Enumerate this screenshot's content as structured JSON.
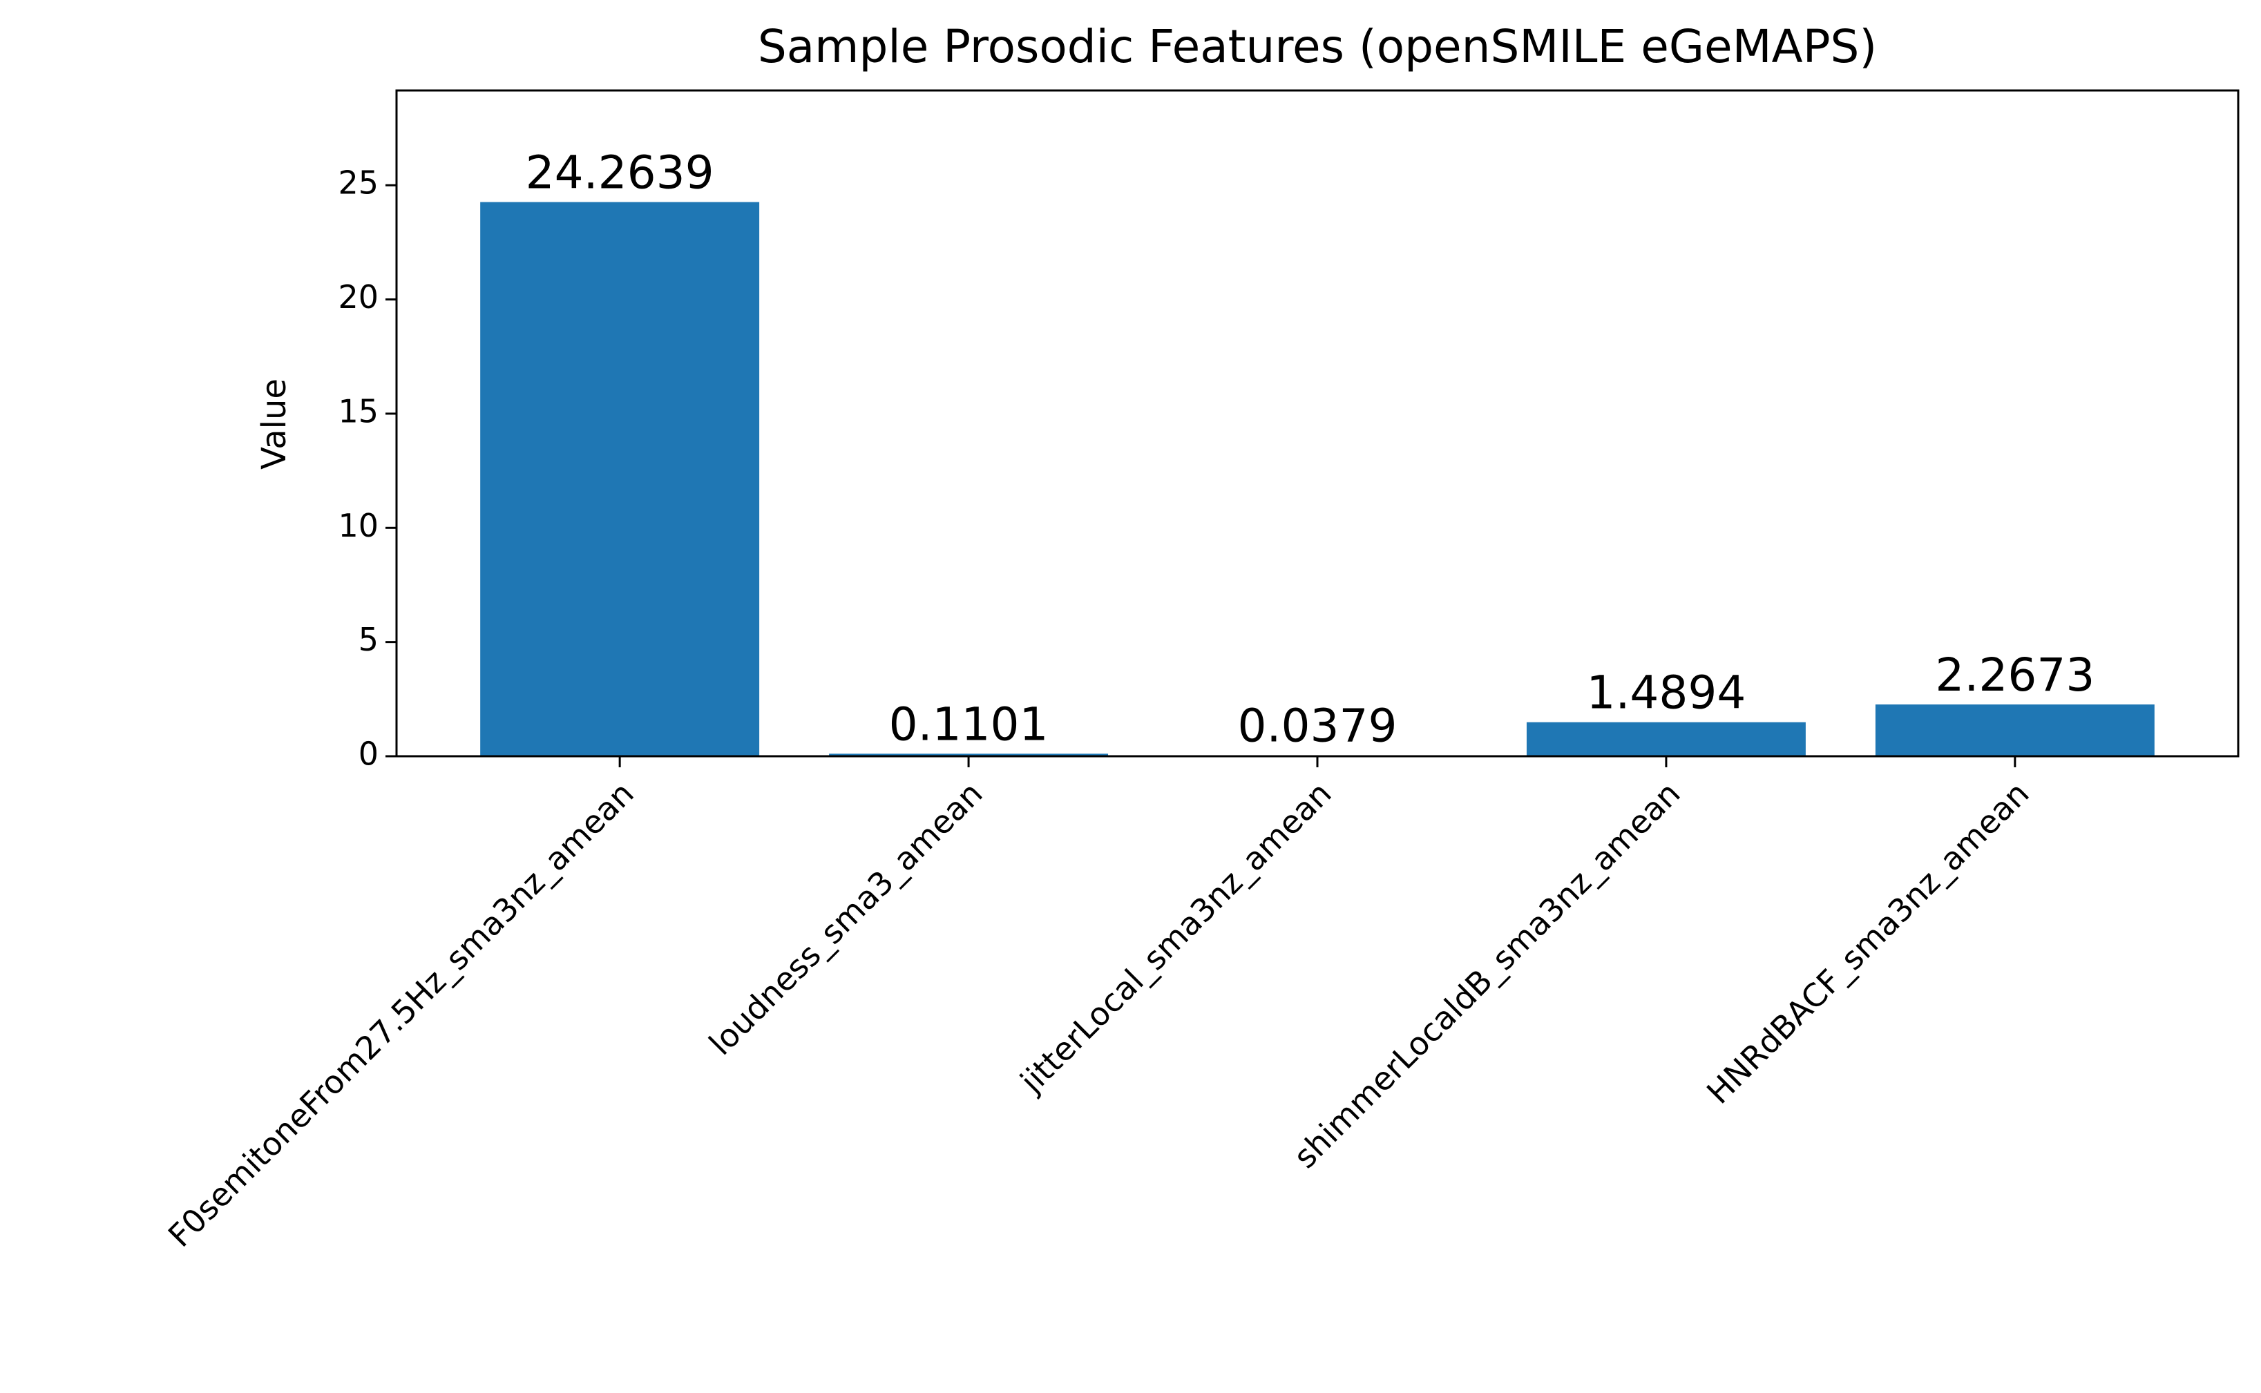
{
  "chart_data": {
    "type": "bar",
    "title": "Sample Prosodic Features (openSMILE eGeMAPS)",
    "y_label": "Value",
    "categories": [
      "F0semitoneFrom27.5Hz_sma3nz_amean",
      "loudness_sma3_amean",
      "jitterLocal_sma3nz_amean",
      "shimmerLocaldB_sma3nz_amean",
      "HNRdBACF_sma3nz_amean"
    ],
    "values": [
      24.2639,
      0.1101,
      0.0379,
      1.4894,
      2.2673
    ],
    "color": "#1f77b4",
    "ylim": [
      0,
      29.15
    ],
    "yticks": [
      0,
      5,
      10,
      15,
      20,
      25
    ],
    "grid": false
  }
}
